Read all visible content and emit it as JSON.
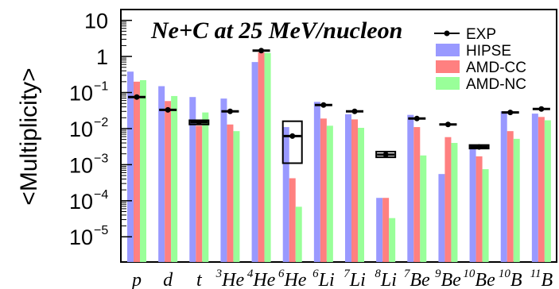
{
  "chart_data": {
    "type": "bar",
    "title": "Ne+C at 25 MeV/nucleon",
    "ylabel": "<Multiplicity>",
    "xlabel": "",
    "yscale": "log",
    "ylim": [
      2e-06,
      20
    ],
    "yticks": [
      {
        "value": 10,
        "base": "10",
        "exp": ""
      },
      {
        "value": 1,
        "base": "1",
        "exp": ""
      },
      {
        "value": 0.1,
        "base": "10",
        "exp": "−1"
      },
      {
        "value": 0.01,
        "base": "10",
        "exp": "−2"
      },
      {
        "value": 0.001,
        "base": "10",
        "exp": "−3"
      },
      {
        "value": 0.0001,
        "base": "10",
        "exp": "−4"
      },
      {
        "value": 1e-05,
        "base": "10",
        "exp": "−5"
      }
    ],
    "categories": [
      {
        "mass": "",
        "symbol": "p"
      },
      {
        "mass": "",
        "symbol": "d"
      },
      {
        "mass": "",
        "symbol": "t"
      },
      {
        "mass": "3",
        "symbol": "He"
      },
      {
        "mass": "4",
        "symbol": "He"
      },
      {
        "mass": "6",
        "symbol": "He"
      },
      {
        "mass": "6",
        "symbol": "Li"
      },
      {
        "mass": "7",
        "symbol": "Li"
      },
      {
        "mass": "8",
        "symbol": "Li"
      },
      {
        "mass": "7",
        "symbol": "Be"
      },
      {
        "mass": "9",
        "symbol": "Be"
      },
      {
        "mass": "10",
        "symbol": "Be"
      },
      {
        "mass": "10",
        "symbol": "B"
      },
      {
        "mass": "11",
        "symbol": "B"
      }
    ],
    "legend_position": "top-right",
    "series": [
      {
        "name": "HIPSE",
        "color": "#9999ff",
        "values": [
          0.38,
          0.15,
          0.075,
          0.068,
          0.7,
          0.011,
          0.055,
          0.025,
          0.00012,
          0.024,
          0.00055,
          0.0036,
          0.03,
          0.026
        ]
      },
      {
        "name": "AMD-CC",
        "color": "#ff8080",
        "values": [
          0.2,
          0.058,
          0.012,
          0.013,
          1.3,
          0.00042,
          0.019,
          0.018,
          0.00012,
          0.011,
          0.0058,
          0.0017,
          0.0085,
          0.021
        ]
      },
      {
        "name": "AMD-NC",
        "color": "#99ff99",
        "values": [
          0.22,
          0.08,
          0.028,
          0.0085,
          1.25,
          6.8e-05,
          0.012,
          0.0105,
          3.3e-05,
          0.0018,
          0.004,
          0.00075,
          0.0052,
          0.017
        ]
      }
    ],
    "exp": {
      "name": "EXP",
      "color": "#000000",
      "values": [
        0.075,
        0.033,
        0.015,
        0.03,
        1.45,
        0.0062,
        0.045,
        0.03,
        0.0019,
        0.019,
        0.013,
        0.0031,
        0.028,
        0.035
      ],
      "error_low": [
        null,
        null,
        0.013,
        null,
        null,
        0.0011,
        null,
        null,
        0.0016,
        null,
        null,
        0.0028,
        null,
        null
      ],
      "error_high": [
        null,
        null,
        0.017,
        null,
        null,
        0.016,
        null,
        null,
        0.0023,
        null,
        null,
        0.0035,
        null,
        null
      ]
    }
  }
}
